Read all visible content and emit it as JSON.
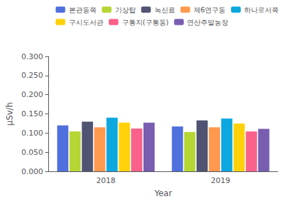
{
  "chart_data": {
    "type": "bar",
    "xlabel": "Year",
    "ylabel": "μSv/h",
    "categories": [
      "2018",
      "2019"
    ],
    "series": [
      {
        "name": "본관동쪽",
        "values": [
          0.12,
          0.117
        ]
      },
      {
        "name": "기상탑",
        "values": [
          0.104,
          0.103
        ]
      },
      {
        "name": "녹신료",
        "values": [
          0.13,
          0.133
        ]
      },
      {
        "name": "제6연구동",
        "values": [
          0.115,
          0.115
        ]
      },
      {
        "name": "하나로서쪽",
        "values": [
          0.14,
          0.138
        ]
      },
      {
        "name": "구시도서관",
        "values": [
          0.127,
          0.125
        ]
      },
      {
        "name": "구통지(구통동)",
        "values": [
          0.112,
          0.104
        ]
      },
      {
        "name": "연산주말농장",
        "values": [
          0.127,
          0.111
        ]
      }
    ],
    "ylim": [
      0.0,
      0.3
    ],
    "yticks": [
      {
        "value": 0.0,
        "label": "0.000"
      },
      {
        "value": 0.05,
        "label": "0.050"
      },
      {
        "value": 0.1,
        "label": "0.100"
      },
      {
        "value": 0.15,
        "label": "0.150"
      },
      {
        "value": 0.2,
        "label": "0.200"
      },
      {
        "value": 0.25,
        "label": "0.250"
      },
      {
        "value": 0.3,
        "label": "0.300"
      }
    ],
    "grid": false,
    "legend": "upper right"
  }
}
